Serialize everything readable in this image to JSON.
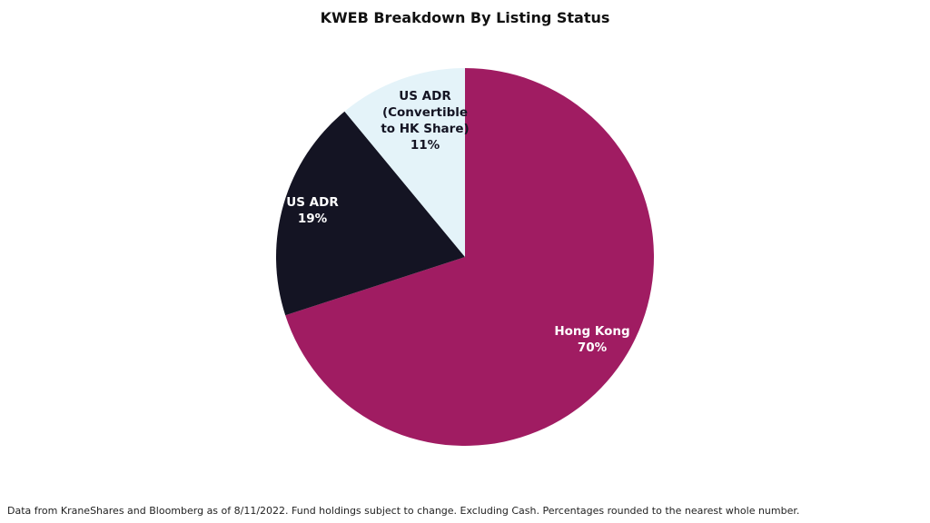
{
  "chart_data": {
    "type": "pie",
    "title": "KWEB Breakdown By Listing Status",
    "slices": [
      {
        "name": "Hong Kong",
        "label_lines": [
          "Hong Kong"
        ],
        "value": 70,
        "value_label": "70%",
        "color": "#a01c62",
        "label_color": "#ffffff"
      },
      {
        "name": "US ADR",
        "label_lines": [
          "US ADR"
        ],
        "value": 19,
        "value_label": "19%",
        "color": "#141423",
        "label_color": "#ffffff"
      },
      {
        "name": "US ADR (Convertible to HK Share)",
        "label_lines": [
          "US ADR",
          "(Convertible",
          "to HK Share)"
        ],
        "value": 11,
        "value_label": "11%",
        "color": "#e4f3f9",
        "label_color": "#141423"
      }
    ],
    "start_position": "12 o'clock",
    "direction": "clockwise",
    "legend": "none"
  },
  "footnote": "Data from KraneShares and Bloomberg as of 8/11/2022. Fund holdings subject to change. Excluding Cash. Percentages rounded to the nearest whole number."
}
